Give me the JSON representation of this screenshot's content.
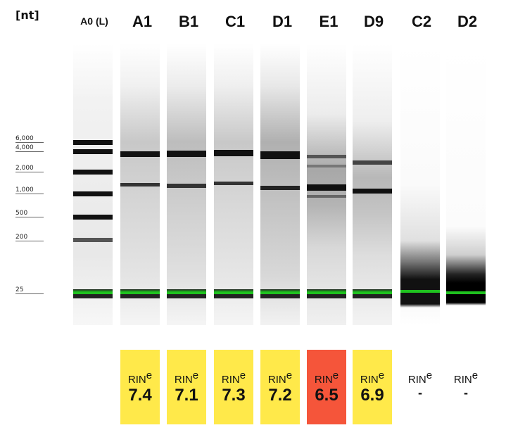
{
  "unit_label": "[nt]",
  "ladder_label": "A0 (L)",
  "ladder_ticks": [
    "6,000",
    "4,000",
    "2,000",
    "1,000",
    "500",
    "200",
    "25"
  ],
  "lanes": [
    {
      "label": "A1",
      "rin_label": "RIN",
      "rin_sup": "e",
      "rin_value": "7.4",
      "color": "#ffe94a"
    },
    {
      "label": "B1",
      "rin_label": "RIN",
      "rin_sup": "e",
      "rin_value": "7.1",
      "color": "#ffe94a"
    },
    {
      "label": "C1",
      "rin_label": "RIN",
      "rin_sup": "e",
      "rin_value": "7.3",
      "color": "#ffe94a"
    },
    {
      "label": "D1",
      "rin_label": "RIN",
      "rin_sup": "e",
      "rin_value": "7.2",
      "color": "#ffe94a"
    },
    {
      "label": "E1",
      "rin_label": "RIN",
      "rin_sup": "e",
      "rin_value": "6.5",
      "color": "#f5553a"
    },
    {
      "label": "D9",
      "rin_label": "RIN",
      "rin_sup": "e",
      "rin_value": "6.9",
      "color": "#ffe94a"
    },
    {
      "label": "C2",
      "rin_label": "RIN",
      "rin_sup": "e",
      "rin_value": "-",
      "color": "#ffffff"
    },
    {
      "label": "D2",
      "rin_label": "RIN",
      "rin_sup": "e",
      "rin_value": "-",
      "color": "#ffffff"
    }
  ],
  "colors": {
    "marker_green": "#1fc21f",
    "band_dark": "#111111"
  }
}
